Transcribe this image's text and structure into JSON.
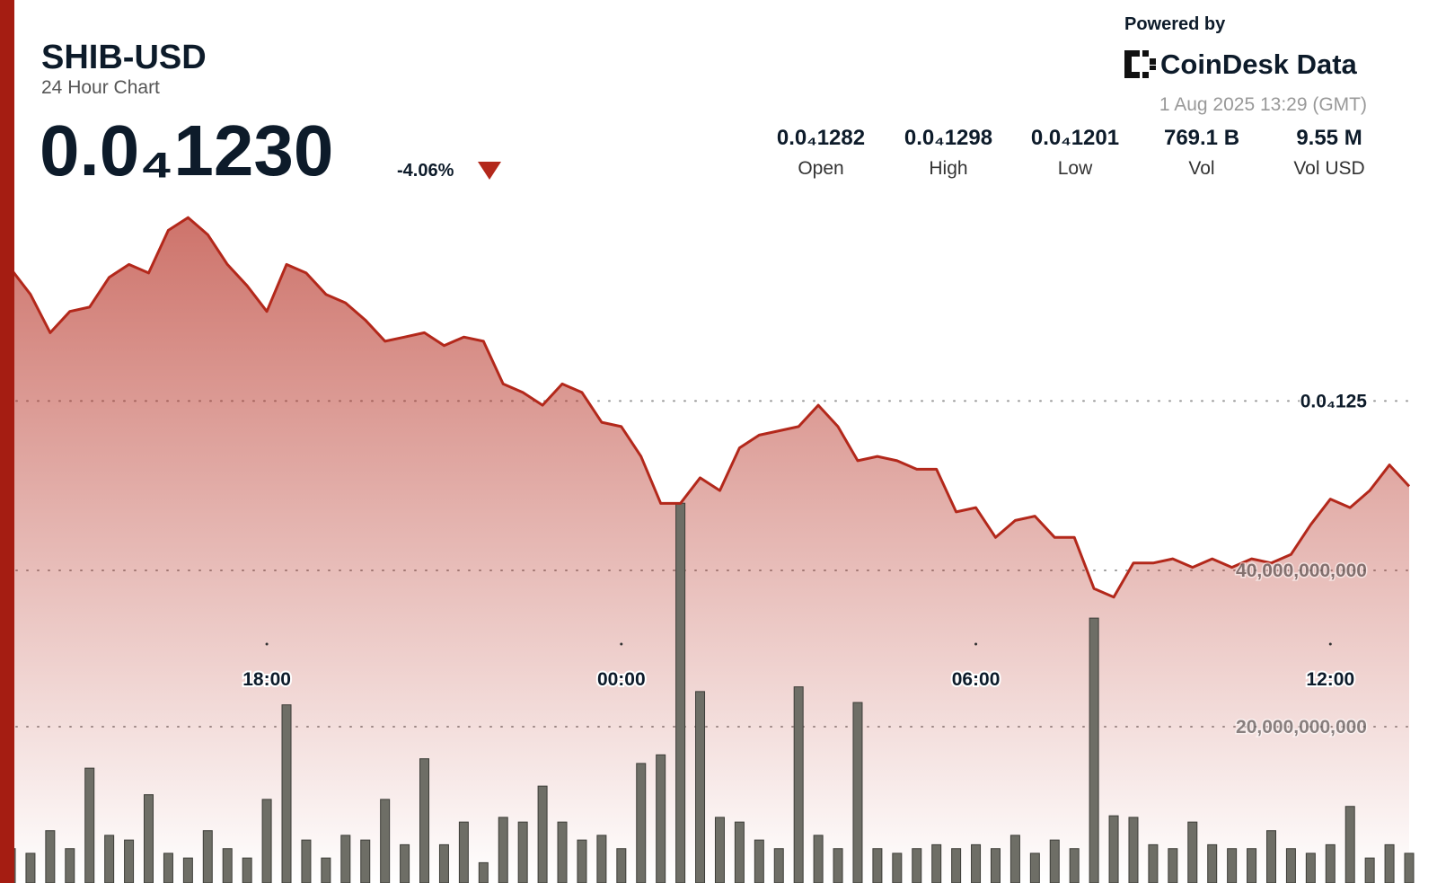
{
  "header": {
    "symbol": "SHIB-USD",
    "subtitle": "24 Hour Chart",
    "price": "0.0₄1230",
    "change": "-4.06%",
    "powered_by": "Powered by",
    "brand": "CoinDesk Data",
    "timestamp": "1 Aug 2025 13:29 (GMT)",
    "stats": [
      {
        "value": "0.0₄1282",
        "label": "Open"
      },
      {
        "value": "0.0₄1298",
        "label": "High"
      },
      {
        "value": "0.0₄1201",
        "label": "Low"
      },
      {
        "value": "769.1 B",
        "label": "Vol"
      },
      {
        "value": "9.55 M",
        "label": "Vol USD"
      }
    ]
  },
  "chart_data": {
    "type": "line",
    "color": "#b3281b",
    "volume_color": "#6e6e66",
    "categories": [
      null,
      null,
      null,
      null,
      null,
      null,
      null,
      null,
      null,
      null,
      null,
      null,
      null,
      "18:00",
      null,
      null,
      null,
      null,
      null,
      null,
      null,
      null,
      null,
      null,
      null,
      null,
      null,
      null,
      null,
      null,
      null,
      "00:00",
      null,
      null,
      null,
      null,
      null,
      null,
      null,
      null,
      null,
      null,
      null,
      null,
      null,
      null,
      null,
      null,
      null,
      "06:00",
      null,
      null,
      null,
      null,
      null,
      null,
      null,
      null,
      null,
      null,
      null,
      null,
      null,
      null,
      null,
      null,
      null,
      "12:00",
      null,
      null,
      null,
      null
    ],
    "values": [
      1.281e-05,
      1.275e-05,
      1.266e-05,
      1.271e-05,
      1.272e-05,
      1.279e-05,
      1.282e-05,
      1.28e-05,
      1.29e-05,
      1.293e-05,
      1.289e-05,
      1.282e-05,
      1.277e-05,
      1.271e-05,
      1.282e-05,
      1.28e-05,
      1.275e-05,
      1.273e-05,
      1.269e-05,
      1.264e-05,
      1.265e-05,
      1.266e-05,
      1.263e-05,
      1.265e-05,
      1.264e-05,
      1.254e-05,
      1.252e-05,
      1.249e-05,
      1.254e-05,
      1.252e-05,
      1.245e-05,
      1.244e-05,
      1.237e-05,
      1.226e-05,
      1.226e-05,
      1.232e-05,
      1.229e-05,
      1.239e-05,
      1.242e-05,
      1.243e-05,
      1.244e-05,
      1.249e-05,
      1.244e-05,
      1.236e-05,
      1.237e-05,
      1.236e-05,
      1.234e-05,
      1.234e-05,
      1.224e-05,
      1.225e-05,
      1.218e-05,
      1.222e-05,
      1.223e-05,
      1.218e-05,
      1.218e-05,
      1.206e-05,
      1.204e-05,
      1.212e-05,
      1.212e-05,
      1.213e-05,
      1.211e-05,
      1.213e-05,
      1.211e-05,
      1.213e-05,
      1.212e-05,
      1.214e-05,
      1.221e-05,
      1.227e-05,
      1.225e-05,
      1.229e-05,
      1.235e-05,
      1.23e-05
    ],
    "volume_values": [
      4400000000,
      3800000000,
      6700000000,
      4400000000,
      14700000000,
      6100000000,
      5500000000,
      11300000000,
      3800000000,
      3200000000,
      6700000000,
      4400000000,
      3200000000,
      10700000000,
      22800000000,
      5500000000,
      3200000000,
      6100000000,
      5500000000,
      10700000000,
      4900000000,
      15900000000,
      4900000000,
      7800000000,
      2600000000,
      8400000000,
      7800000000,
      12400000000,
      7800000000,
      5500000000,
      6100000000,
      4400000000,
      15300000000,
      16400000000,
      48600000000,
      24500000000,
      8400000000,
      7800000000,
      5500000000,
      4400000000,
      25100000000,
      6100000000,
      4400000000,
      23100000000,
      4400000000,
      3800000000,
      4400000000,
      4900000000,
      4400000000,
      4900000000,
      4400000000,
      6100000000,
      3800000000,
      5500000000,
      4400000000,
      33900000000,
      8600000000,
      8400000000,
      4900000000,
      4400000000,
      7800000000,
      4900000000,
      4400000000,
      4400000000,
      6700000000,
      4400000000,
      3800000000,
      4900000000,
      9800000000,
      3200000000,
      4900000000,
      3800000000
    ],
    "ylim": [
      1.137e-05,
      1.344e-05
    ],
    "yticks": [
      {
        "value": 1.25e-05,
        "label": "0.0₄125"
      }
    ],
    "y2lim": [
      0,
      113000000000
    ],
    "y2ticks": [
      {
        "value": 20000000000,
        "label": "20,000,000,000"
      },
      {
        "value": 40000000000,
        "label": "40,000,000,000"
      }
    ],
    "grid": true
  }
}
